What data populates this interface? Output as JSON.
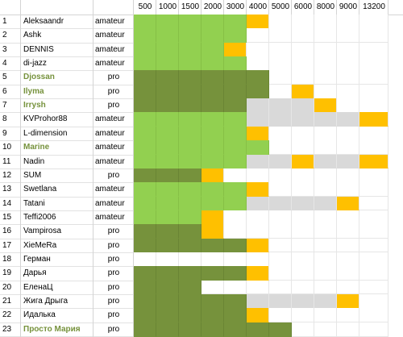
{
  "columns": [
    "500",
    "1000",
    "1500",
    "2000",
    "3000",
    "4000",
    "5000",
    "6000",
    "8000",
    "9000",
    "13200"
  ],
  "colors": {
    "light_green": "#92d050",
    "dark_green": "#76923c",
    "orange": "#ffc000",
    "grey": "#d9d9d9",
    "white": "#ffffff"
  },
  "rows": [
    {
      "num": "1",
      "name": "Aleksaandr",
      "type": "amateur",
      "bold": false,
      "cells": [
        "L",
        "L",
        "L",
        "L",
        "L",
        "O",
        "W",
        "W",
        "W",
        "W",
        "W"
      ]
    },
    {
      "num": "2",
      "name": "Ashk",
      "type": "amateur",
      "bold": false,
      "cells": [
        "L",
        "L",
        "L",
        "L",
        "L",
        "W",
        "W",
        "W",
        "W",
        "W",
        "W"
      ]
    },
    {
      "num": "3",
      "name": "DENNIS",
      "type": "amateur",
      "bold": false,
      "cells": [
        "L",
        "L",
        "L",
        "L",
        "O",
        "W",
        "W",
        "W",
        "W",
        "W",
        "W"
      ]
    },
    {
      "num": "4",
      "name": "di-jazz",
      "type": "amateur",
      "bold": false,
      "cells": [
        "L",
        "L",
        "L",
        "L",
        "L",
        "W",
        "W",
        "W",
        "W",
        "W",
        "W"
      ]
    },
    {
      "num": "5",
      "name": "Djossan",
      "type": "pro",
      "bold": true,
      "cells": [
        "D",
        "D",
        "D",
        "D",
        "D",
        "D",
        "W",
        "W",
        "W",
        "W",
        "W"
      ]
    },
    {
      "num": "6",
      "name": "Ilyma",
      "type": "pro",
      "bold": true,
      "cells": [
        "D",
        "D",
        "D",
        "D",
        "D",
        "D",
        "W",
        "O",
        "W",
        "W",
        "W"
      ]
    },
    {
      "num": "7",
      "name": "Irrysh",
      "type": "pro",
      "bold": true,
      "cells": [
        "D",
        "D",
        "D",
        "D",
        "D",
        "G",
        "G",
        "G",
        "O",
        "W",
        "W"
      ]
    },
    {
      "num": "8",
      "name": "KVProhor88",
      "type": "amateur",
      "bold": false,
      "cells": [
        "L",
        "L",
        "L",
        "L",
        "L",
        "G",
        "G",
        "G",
        "G",
        "G",
        "O"
      ]
    },
    {
      "num": "9",
      "name": "L-dimension",
      "type": "amateur",
      "bold": false,
      "cells": [
        "L",
        "L",
        "L",
        "L",
        "L",
        "O",
        "W",
        "W",
        "W",
        "W",
        "W"
      ]
    },
    {
      "num": "10",
      "name": "Marine",
      "type": "amateur",
      "bold": true,
      "cells": [
        "L",
        "L",
        "L",
        "L",
        "L",
        "L",
        "W",
        "W",
        "W",
        "W",
        "W"
      ]
    },
    {
      "num": "11",
      "name": "Nadin",
      "type": "amateur",
      "bold": false,
      "cells": [
        "L",
        "L",
        "L",
        "L",
        "L",
        "G",
        "G",
        "O",
        "G",
        "G",
        "O"
      ]
    },
    {
      "num": "12",
      "name": "SUM",
      "type": "pro",
      "bold": false,
      "cells": [
        "D",
        "D",
        "D",
        "O",
        "W",
        "W",
        "W",
        "W",
        "W",
        "W",
        "W"
      ]
    },
    {
      "num": "13",
      "name": "Swetlana",
      "type": "amateur",
      "bold": false,
      "cells": [
        "L",
        "L",
        "L",
        "L",
        "L",
        "O",
        "W",
        "W",
        "W",
        "W",
        "W"
      ]
    },
    {
      "num": "14",
      "name": "Tatani",
      "type": "amateur",
      "bold": false,
      "cells": [
        "L",
        "L",
        "L",
        "L",
        "L",
        "G",
        "G",
        "G",
        "G",
        "O",
        "W"
      ]
    },
    {
      "num": "15",
      "name": "Teffi2006",
      "type": "amateur",
      "bold": false,
      "cells": [
        "L",
        "L",
        "L",
        "O",
        "W",
        "W",
        "W",
        "W",
        "W",
        "W",
        "W"
      ]
    },
    {
      "num": "16",
      "name": "Vampirosa",
      "type": "pro",
      "bold": false,
      "cells": [
        "D",
        "D",
        "D",
        "O",
        "W",
        "W",
        "W",
        "W",
        "W",
        "W",
        "W"
      ]
    },
    {
      "num": "17",
      "name": "XieMeRa",
      "type": "pro",
      "bold": false,
      "cells": [
        "D",
        "D",
        "D",
        "D",
        "D",
        "O",
        "W",
        "W",
        "W",
        "W",
        "W"
      ]
    },
    {
      "num": "18",
      "name": "Герман",
      "type": "pro",
      "bold": false,
      "cells": [
        "W",
        "W",
        "W",
        "W",
        "W",
        "W",
        "W",
        "W",
        "W",
        "W",
        "W"
      ]
    },
    {
      "num": "19",
      "name": "Дарья",
      "type": "pro",
      "bold": false,
      "cells": [
        "D",
        "D",
        "D",
        "D",
        "D",
        "O",
        "W",
        "W",
        "W",
        "W",
        "W"
      ]
    },
    {
      "num": "20",
      "name": "ЕленаЦ",
      "type": "pro",
      "bold": false,
      "cells": [
        "D",
        "D",
        "D",
        "W",
        "W",
        "W",
        "W",
        "W",
        "W",
        "W",
        "W"
      ]
    },
    {
      "num": "21",
      "name": "Жига Дрыга",
      "type": "pro",
      "bold": false,
      "cells": [
        "D",
        "D",
        "D",
        "D",
        "D",
        "G",
        "G",
        "G",
        "G",
        "O",
        "W"
      ]
    },
    {
      "num": "22",
      "name": "Идалька",
      "type": "pro",
      "bold": false,
      "cells": [
        "D",
        "D",
        "D",
        "D",
        "D",
        "O",
        "W",
        "W",
        "W",
        "W",
        "W"
      ]
    },
    {
      "num": "23",
      "name": "Просто Мария",
      "type": "pro",
      "bold": true,
      "cells": [
        "D",
        "D",
        "D",
        "D",
        "D",
        "D",
        "D",
        "W",
        "W",
        "W",
        "W"
      ]
    }
  ]
}
